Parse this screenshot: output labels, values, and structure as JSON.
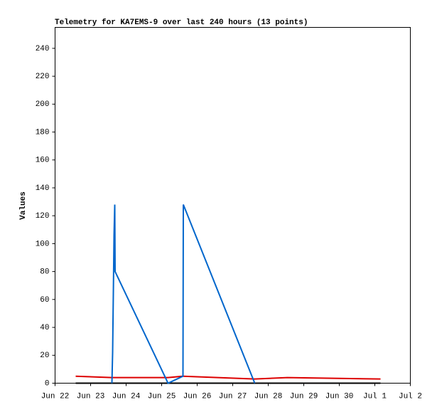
{
  "chart_data": {
    "type": "line",
    "title": "Telemetry for KA7EMS-9 over last 240 hours (13 points)",
    "y_label": "Values",
    "x": [
      22.58,
      23.6,
      23.62,
      23.64,
      23.66,
      23.68,
      23.69,
      25.18,
      25.6,
      25.61,
      27.62,
      28.54,
      31.16
    ],
    "series": [
      {
        "color": "#000000",
        "values": [
          0,
          0,
          0,
          0,
          0,
          0,
          0,
          0,
          0,
          0,
          0,
          0,
          0
        ]
      },
      {
        "color": "#dd0000",
        "values": [
          5,
          4,
          4,
          4,
          4,
          4,
          4,
          4,
          5,
          5,
          3,
          4,
          3
        ]
      },
      {
        "color": "#0066cc",
        "values": [
          null,
          0,
          22,
          64,
          106,
          128,
          80,
          0,
          5,
          128,
          0,
          null,
          null
        ]
      }
    ],
    "xlim": [
      22,
      32
    ],
    "xticks": [
      {
        "value": 22,
        "label": "Jun 22"
      },
      {
        "value": 23,
        "label": "Jun 23"
      },
      {
        "value": 24,
        "label": "Jun 24"
      },
      {
        "value": 25,
        "label": "Jun 25"
      },
      {
        "value": 26,
        "label": "Jun 26"
      },
      {
        "value": 27,
        "label": "Jun 27"
      },
      {
        "value": 28,
        "label": "Jun 28"
      },
      {
        "value": 29,
        "label": "Jun 29"
      },
      {
        "value": 30,
        "label": "Jun 30"
      },
      {
        "value": 31,
        "label": "Jul 1"
      },
      {
        "value": 32,
        "label": "Jul 2"
      }
    ],
    "ylim": [
      0,
      255
    ],
    "yticks": [
      0,
      20,
      40,
      60,
      80,
      100,
      120,
      140,
      160,
      180,
      200,
      220,
      240
    ],
    "grid": false
  }
}
